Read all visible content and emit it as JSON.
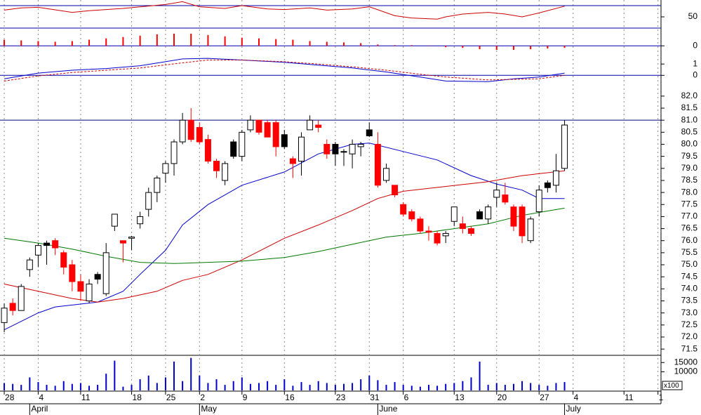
{
  "chart_data": [
    {
      "type": "line",
      "ylim": [
        20,
        80
      ],
      "yticks": [
        50
      ],
      "levels": [
        30,
        70
      ],
      "level_color": "#0000aa",
      "series": [
        {
          "color": "#cc0000",
          "x": [
            0,
            2,
            4,
            8,
            10,
            14,
            19,
            21,
            23,
            26,
            28,
            31,
            33,
            36,
            38,
            41,
            43,
            46,
            48,
            51,
            52,
            54,
            57,
            59,
            61,
            63,
            66
          ],
          "values": [
            62,
            66,
            67,
            58,
            61,
            65,
            72,
            77,
            68,
            65,
            70,
            64,
            63,
            66,
            62,
            64,
            68,
            52,
            48,
            46,
            50,
            55,
            58,
            55,
            50,
            57,
            69
          ]
        }
      ]
    },
    {
      "type": "bar",
      "ylim": [
        -0.35,
        1.0
      ],
      "yticks": [
        0
      ],
      "levels": [
        0
      ],
      "level_color": "#0000aa",
      "color": "#ff0000",
      "x": [
        0,
        2,
        4,
        6,
        8,
        10,
        12,
        14,
        16,
        18,
        20,
        22,
        24,
        26,
        28,
        30,
        32,
        34,
        36,
        38,
        40,
        42,
        44,
        46,
        48,
        50,
        52,
        54,
        56,
        58,
        60,
        62,
        64,
        66
      ],
      "values": [
        0.45,
        0.4,
        0.35,
        0.3,
        0.35,
        0.45,
        0.55,
        0.65,
        0.75,
        0.85,
        0.9,
        0.9,
        0.8,
        0.7,
        0.6,
        0.55,
        0.5,
        0.45,
        0.35,
        0.3,
        0.25,
        0.2,
        0.1,
        0.05,
        0.05,
        0.0,
        -0.1,
        -0.15,
        -0.25,
        -0.3,
        -0.3,
        -0.25,
        -0.2,
        -0.15
      ]
    },
    {
      "type": "line",
      "ylim": [
        -0.6,
        2.0
      ],
      "yticks": [
        0,
        1
      ],
      "levels": [
        0
      ],
      "level_color": "#0000aa",
      "series": [
        {
          "color": "#0000cc",
          "x": [
            0,
            4,
            8,
            12,
            16,
            21,
            24,
            28,
            33,
            37,
            41,
            45,
            49,
            52,
            57,
            60,
            63,
            66
          ],
          "values": [
            -0.3,
            0.2,
            0.45,
            0.6,
            0.85,
            1.45,
            1.5,
            1.35,
            1.15,
            0.9,
            0.65,
            0.3,
            -0.15,
            -0.5,
            -0.55,
            -0.3,
            -0.15,
            0.2
          ]
        },
        {
          "color": "#cc0000",
          "dashed": true,
          "x": [
            0,
            4,
            8,
            12,
            16,
            21,
            24,
            28,
            33,
            37,
            41,
            45,
            49,
            52,
            57,
            60,
            63,
            66
          ],
          "values": [
            -0.5,
            -0.05,
            0.25,
            0.45,
            0.65,
            1.1,
            1.35,
            1.35,
            1.2,
            1.0,
            0.75,
            0.45,
            0.1,
            -0.15,
            -0.4,
            -0.35,
            -0.3,
            0.0
          ]
        }
      ]
    },
    {
      "type": "candlestick",
      "ylim": [
        71.27,
        82.2
      ],
      "yticks": [
        {
          "value": 82.0,
          "label": "82.0"
        },
        81.5,
        {
          "value": 81.0,
          "label": "81.0"
        },
        80.5,
        {
          "value": 80.0,
          "label": "80.0"
        },
        79.5,
        {
          "value": 79.0,
          "label": "79.0"
        },
        78.5,
        {
          "value": 78.0,
          "label": "78.0"
        },
        77.5,
        {
          "value": 77.0,
          "label": "77.0"
        },
        76.5,
        {
          "value": 76.0,
          "label": "76.0"
        },
        75.5,
        {
          "value": 75.0,
          "label": "75.0"
        },
        74.5,
        {
          "value": 74.0,
          "label": "74.0"
        },
        73.5,
        {
          "value": 73.0,
          "label": "73.0"
        },
        72.5,
        {
          "value": 72.0,
          "label": "72.0"
        },
        71.5
      ],
      "levels": [
        81.0
      ],
      "level_color": "#000080",
      "up_color": "#ffffff",
      "down_color": "#ff0000",
      "down_hold_color": "#000000",
      "xlim": [
        -0.5,
        77.36
      ],
      "xticks": [
        {
          "value": 0,
          "label": "28"
        },
        {
          "value": 4,
          "label": "4"
        },
        {
          "value": 9,
          "label": "11"
        },
        {
          "value": 15,
          "label": "18"
        },
        {
          "value": 19,
          "label": "25"
        },
        {
          "value": 23,
          "label": "2"
        },
        {
          "value": 28,
          "label": "9"
        },
        {
          "value": 33,
          "label": "16"
        },
        {
          "value": 39,
          "label": "23"
        },
        {
          "value": 43,
          "label": "31"
        },
        {
          "value": 47,
          "label": "6"
        },
        {
          "value": 53,
          "label": "13"
        },
        {
          "value": 58,
          "label": "20"
        },
        {
          "value": 63,
          "label": "27"
        },
        {
          "value": 67,
          "label": "4"
        },
        {
          "value": 73,
          "label": "11"
        },
        {
          "value": 77,
          "label": "1"
        }
      ],
      "months": [
        {
          "value": 3,
          "label": "April"
        },
        {
          "value": 23,
          "label": "May"
        },
        {
          "value": 44,
          "label": "June"
        },
        {
          "value": 66,
          "label": "July"
        }
      ],
      "x": [
        0,
        1,
        2,
        3,
        4,
        5,
        6,
        7,
        8,
        9,
        10,
        11,
        12,
        13,
        14,
        15,
        16,
        17,
        18,
        19,
        20,
        21,
        22,
        23,
        24,
        25,
        26,
        27,
        28,
        29,
        30,
        31,
        32,
        33,
        34,
        35,
        36,
        37,
        38,
        39,
        40,
        41,
        42,
        43,
        44,
        45,
        46,
        47,
        48,
        49,
        50,
        51,
        52,
        53,
        54,
        55,
        56,
        57,
        58,
        59,
        60,
        61,
        62,
        63,
        64,
        65,
        66
      ],
      "open": [
        72.6,
        73.4,
        73.1,
        74.8,
        75.4,
        75.9,
        76.0,
        75.5,
        75.0,
        74.3,
        73.5,
        74.6,
        73.8,
        76.6,
        76.0,
        76.1,
        76.7,
        77.3,
        78.0,
        78.8,
        79.2,
        80.1,
        81.0,
        80.7,
        80.2,
        79.3,
        78.5,
        80.1,
        79.5,
        80.6,
        81.0,
        80.9,
        80.9,
        80.4,
        79.4,
        79.3,
        80.6,
        80.8,
        80.0,
        80.0,
        79.7,
        79.6,
        79.9,
        80.6,
        80.0,
        78.5,
        78.3,
        77.5,
        77.2,
        76.9,
        76.4,
        76.3,
        76.2,
        76.8,
        76.7,
        76.5,
        77.2,
        76.9,
        77.8,
        77.9,
        77.4,
        77.4,
        76.0,
        77.2,
        78.4,
        78.3,
        79.0
      ],
      "high": [
        73.4,
        73.6,
        74.2,
        75.3,
        75.9,
        76.0,
        76.1,
        75.6,
        75.2,
        74.6,
        74.4,
        74.7,
        75.9,
        77.1,
        76.0,
        76.2,
        77.2,
        78.2,
        78.7,
        79.3,
        80.2,
        81.3,
        81.5,
        80.9,
        80.4,
        79.4,
        79.3,
        80.2,
        80.6,
        81.2,
        81.0,
        81.0,
        81.0,
        80.6,
        79.5,
        80.5,
        81.2,
        81.0,
        80.2,
        80.1,
        79.8,
        80.2,
        80.1,
        80.9,
        80.5,
        79.2,
        78.3,
        77.6,
        77.3,
        77.0,
        76.6,
        76.4,
        76.4,
        77.4,
        77.0,
        76.6,
        77.3,
        77.5,
        78.4,
        78.4,
        77.5,
        77.5,
        77.0,
        78.3,
        78.5,
        79.6,
        81.0
      ],
      "low": [
        72.2,
        72.9,
        73.1,
        74.5,
        74.9,
        75.0,
        75.4,
        74.6,
        73.9,
        73.5,
        73.4,
        74.2,
        73.7,
        76.4,
        75.1,
        75.6,
        76.5,
        77.0,
        77.6,
        78.4,
        78.7,
        80.0,
        80.1,
        80.0,
        79.2,
        78.6,
        78.3,
        79.4,
        79.3,
        80.5,
        80.4,
        80.3,
        79.5,
        79.8,
        78.6,
        78.7,
        80.6,
        80.5,
        79.4,
        79.1,
        79.1,
        79.0,
        79.5,
        80.3,
        78.2,
        78.4,
        77.8,
        77.0,
        76.8,
        76.3,
        76.0,
        75.8,
        75.9,
        76.6,
        76.3,
        76.2,
        76.9,
        76.7,
        77.4,
        77.5,
        76.4,
        75.9,
        75.9,
        77.0,
        78.0,
        78.0,
        78.9
      ],
      "close": [
        73.2,
        73.1,
        74.1,
        75.2,
        75.8,
        75.8,
        75.7,
        74.9,
        74.3,
        73.9,
        74.2,
        74.4,
        75.5,
        77.1,
        75.9,
        76.15,
        77.0,
        78.0,
        78.6,
        79.2,
        80.1,
        81.0,
        80.2,
        80.1,
        79.3,
        78.9,
        79.2,
        79.5,
        80.5,
        81.0,
        80.5,
        80.3,
        79.9,
        79.9,
        79.2,
        80.3,
        81.0,
        80.7,
        79.6,
        79.6,
        79.7,
        80.0,
        80.0,
        80.35,
        78.3,
        79.0,
        77.9,
        77.1,
        76.9,
        76.4,
        76.35,
        75.9,
        76.3,
        77.4,
        76.5,
        76.3,
        76.9,
        77.4,
        78.1,
        77.6,
        76.6,
        76.2,
        76.9,
        78.1,
        78.2,
        78.9,
        80.8
      ],
      "series": [
        {
          "color": "#0000cc",
          "x": [
            0,
            4,
            6,
            11,
            14,
            16,
            19,
            21,
            24,
            28,
            33,
            37,
            41,
            43,
            47,
            51,
            55,
            58,
            61,
            63,
            66
          ],
          "values": [
            72.3,
            73.0,
            73.25,
            73.45,
            73.9,
            74.6,
            75.6,
            76.65,
            77.5,
            78.3,
            78.85,
            79.6,
            80.0,
            80.05,
            79.7,
            79.35,
            78.7,
            78.35,
            78.1,
            77.75,
            77.75
          ]
        },
        {
          "color": "#cc0000",
          "x": [
            0,
            4,
            8,
            11,
            14,
            18,
            21,
            24,
            28,
            33,
            37,
            41,
            44,
            47,
            52,
            57,
            61,
            66
          ],
          "values": [
            74.2,
            73.9,
            73.6,
            73.45,
            73.6,
            73.9,
            74.35,
            74.6,
            75.2,
            76.1,
            76.65,
            77.25,
            77.75,
            78.05,
            78.25,
            78.45,
            78.7,
            78.9
          ]
        },
        {
          "color": "#007700",
          "x": [
            0,
            4,
            8,
            12,
            16,
            20,
            24,
            28,
            33,
            37,
            41,
            45,
            49,
            53,
            57,
            61,
            66
          ],
          "values": [
            76.1,
            75.9,
            75.65,
            75.35,
            75.1,
            75.05,
            75.1,
            75.15,
            75.3,
            75.55,
            75.85,
            76.15,
            76.3,
            76.5,
            76.7,
            77.05,
            77.35
          ]
        }
      ]
    },
    {
      "type": "bar",
      "ylim": [
        0,
        18500
      ],
      "yticks": [
        15000,
        10000
      ],
      "unit_label": "x100",
      "color": "#0000cc",
      "x": [
        0,
        1,
        2,
        3,
        4,
        5,
        6,
        7,
        8,
        9,
        10,
        11,
        12,
        13,
        14,
        15,
        16,
        17,
        18,
        19,
        20,
        21,
        22,
        23,
        24,
        25,
        26,
        27,
        28,
        29,
        30,
        31,
        32,
        33,
        34,
        35,
        36,
        37,
        38,
        39,
        40,
        41,
        42,
        43,
        44,
        45,
        46,
        47,
        48,
        49,
        50,
        51,
        52,
        53,
        54,
        55,
        56,
        57,
        58,
        59,
        60,
        61,
        62,
        63,
        64,
        65,
        66
      ],
      "values": [
        4000,
        3500,
        3000,
        7000,
        4500,
        3000,
        2500,
        5000,
        3500,
        4000,
        2500,
        3000,
        9000,
        16000,
        2000,
        3000,
        6000,
        8000,
        4000,
        7000,
        15500,
        5000,
        17500,
        8000,
        4000,
        6000,
        3000,
        5000,
        7000,
        3500,
        4000,
        5000,
        3000,
        6000,
        2500,
        4500,
        3000,
        5000,
        4000,
        3000,
        3500,
        4000,
        6000,
        8000,
        5500,
        3000,
        4500,
        3000,
        2500,
        2000,
        3000,
        2500,
        3500,
        4000,
        5000,
        7000,
        15500,
        3000,
        4000,
        3000,
        3500,
        5000,
        4000,
        3000,
        2500,
        4000,
        4500
      ]
    }
  ]
}
